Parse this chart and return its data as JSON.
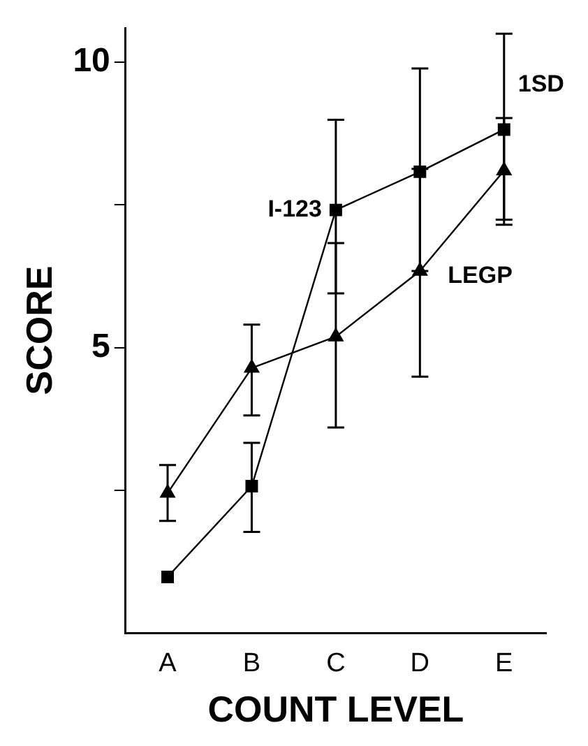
{
  "chart_data": {
    "type": "line",
    "xlabel": "COUNT LEVEL",
    "ylabel": "SCORE",
    "categories": [
      "A",
      "B",
      "C",
      "D",
      "E"
    ],
    "series": [
      {
        "name": "I-123",
        "color": "#000000",
        "marker": "square",
        "values": [
          0.98,
          2.57,
          7.41,
          8.08,
          8.82
        ],
        "errors": [
          null,
          [
            1.77,
            3.33
          ],
          [
            5.95,
            8.99
          ],
          [
            6.34,
            9.89
          ],
          [
            7.15,
            10.5
          ]
        ]
      },
      {
        "name": "LEGP",
        "color": "#000000",
        "marker": "triangle",
        "values": [
          2.45,
          4.64,
          5.19,
          6.34,
          8.1
        ],
        "errors": [
          [
            1.96,
            2.94
          ],
          [
            3.81,
            5.4
          ],
          [
            3.6,
            6.83
          ],
          [
            4.49,
            8.13
          ],
          [
            7.24,
            9.02
          ]
        ]
      }
    ],
    "annotations": [
      "1SD"
    ],
    "ylim": [
      0,
      10.6
    ],
    "yticks": [
      {
        "value": 2.5,
        "label": null
      },
      5,
      {
        "value": 7.5,
        "label": null
      },
      10
    ],
    "grid": false,
    "legend": false,
    "line_style": "solid"
  }
}
